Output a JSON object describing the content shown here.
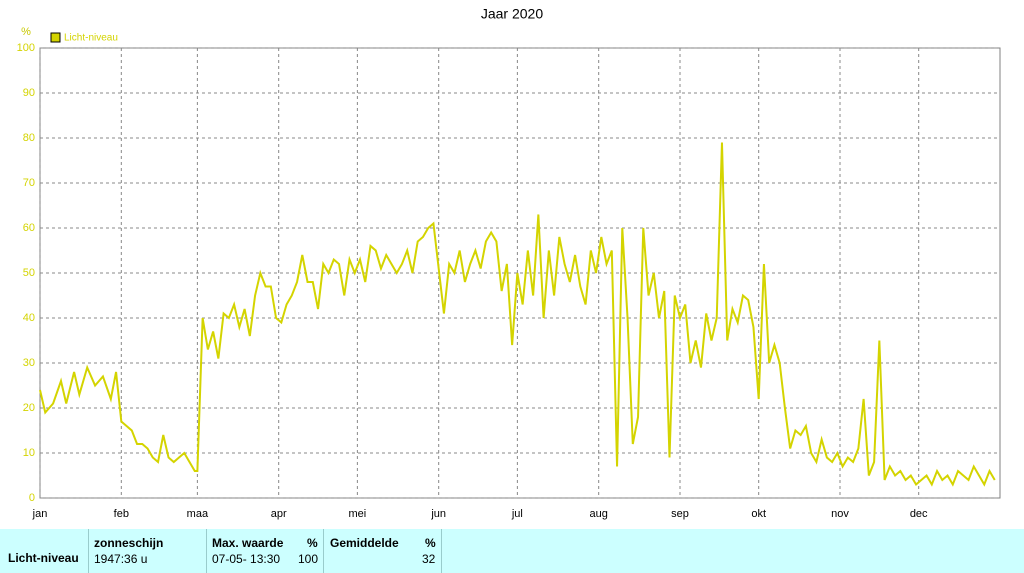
{
  "chart_data": {
    "type": "line",
    "title": "Jaar 2020",
    "y_label": "%",
    "series": [
      {
        "name": "Licht-niveau",
        "color": "#d4d400",
        "x": [
          0,
          2,
          5,
          8,
          10,
          13,
          15,
          18,
          21,
          24,
          27,
          29,
          31,
          33,
          35,
          37,
          39,
          41,
          43,
          45,
          47,
          49,
          51,
          53,
          55,
          57,
          59,
          60,
          62,
          64,
          66,
          68,
          70,
          72,
          74,
          76,
          78,
          80,
          82,
          84,
          86,
          88,
          90,
          92,
          94,
          96,
          98,
          100,
          102,
          104,
          106,
          108,
          110,
          112,
          114,
          116,
          118,
          120,
          122,
          124,
          126,
          128,
          130,
          132,
          134,
          136,
          138,
          140,
          142,
          144,
          146,
          148,
          150,
          154,
          156,
          158,
          160,
          162,
          164,
          166,
          168,
          170,
          172,
          174,
          176,
          178,
          180,
          182,
          184,
          186,
          188,
          190,
          192,
          194,
          196,
          198,
          200,
          202,
          204,
          206,
          208,
          210,
          212,
          214,
          216,
          218,
          220,
          222,
          224,
          226,
          228,
          230,
          232,
          234,
          236,
          238,
          240,
          242,
          244,
          246,
          248,
          250,
          252,
          254,
          256,
          258,
          260,
          262,
          264,
          266,
          268,
          270,
          272,
          274,
          276,
          278,
          280,
          282,
          284,
          286,
          288,
          290,
          292,
          294,
          296,
          298,
          300,
          302,
          304,
          306,
          308,
          310,
          312,
          314,
          316,
          318,
          320,
          322,
          324,
          326,
          328,
          330,
          332,
          334,
          336,
          338,
          340,
          342,
          344,
          346,
          348,
          350,
          352,
          354,
          356,
          358,
          360,
          362,
          364
        ],
        "values": [
          24,
          19,
          21,
          26,
          21,
          28,
          23,
          29,
          25,
          27,
          22,
          28,
          17,
          16,
          15,
          12,
          12,
          11,
          9,
          8,
          14,
          9,
          8,
          9,
          10,
          8,
          6,
          6,
          40,
          33,
          37,
          31,
          41,
          40,
          43,
          38,
          42,
          36,
          45,
          50,
          47,
          47,
          40,
          39,
          43,
          45,
          48,
          54,
          48,
          48,
          42,
          52,
          50,
          53,
          52,
          45,
          53,
          50,
          53,
          48,
          56,
          55,
          51,
          54,
          52,
          50,
          52,
          55,
          50,
          57,
          58,
          60,
          61,
          41,
          52,
          50,
          55,
          48,
          52,
          55,
          51,
          57,
          59,
          57,
          46,
          52,
          34,
          50,
          43,
          55,
          45,
          63,
          40,
          55,
          45,
          58,
          52,
          48,
          54,
          47,
          43,
          55,
          50,
          58,
          52,
          55,
          7,
          60,
          40,
          12,
          18,
          60,
          45,
          50,
          40,
          46,
          9,
          45,
          40,
          43,
          30,
          35,
          29,
          41,
          35,
          40,
          79,
          35,
          42,
          39,
          45,
          44,
          38,
          22,
          52,
          30,
          34,
          30,
          20,
          11,
          15,
          14,
          16,
          10,
          8,
          13,
          9,
          8,
          10,
          7,
          9,
          8,
          11,
          22,
          5,
          8,
          35,
          4,
          7,
          5,
          6,
          4,
          5,
          3,
          4,
          5,
          3,
          6,
          4,
          5,
          3,
          6,
          5,
          4,
          7,
          5,
          3,
          6,
          4
        ]
      }
    ],
    "xlim": [
      0,
      366
    ],
    "xticks": [
      {
        "value": 0,
        "label": "jan"
      },
      {
        "value": 31,
        "label": "feb"
      },
      {
        "value": 60,
        "label": "maa"
      },
      {
        "value": 91,
        "label": "apr"
      },
      {
        "value": 121,
        "label": "mei"
      },
      {
        "value": 152,
        "label": "jun"
      },
      {
        "value": 182,
        "label": "jul"
      },
      {
        "value": 213,
        "label": "aug"
      },
      {
        "value": 244,
        "label": "sep"
      },
      {
        "value": 274,
        "label": "okt"
      },
      {
        "value": 305,
        "label": "nov"
      },
      {
        "value": 335,
        "label": "dec"
      }
    ],
    "ylim": [
      0,
      100
    ],
    "yticks": [
      0,
      10,
      20,
      30,
      40,
      50,
      60,
      70,
      80,
      90,
      100
    ],
    "grid": true,
    "legend": "top-left"
  },
  "table": {
    "row_label": "Licht-niveau",
    "col1": {
      "header": "zonneschijn",
      "value": "1947:36 u"
    },
    "col2": {
      "header": "Max. waarde",
      "unit": "%",
      "date": "07-05- 13:30",
      "value": "100"
    },
    "col3": {
      "header": "Gemiddelde",
      "unit": "%",
      "value": "32"
    }
  }
}
